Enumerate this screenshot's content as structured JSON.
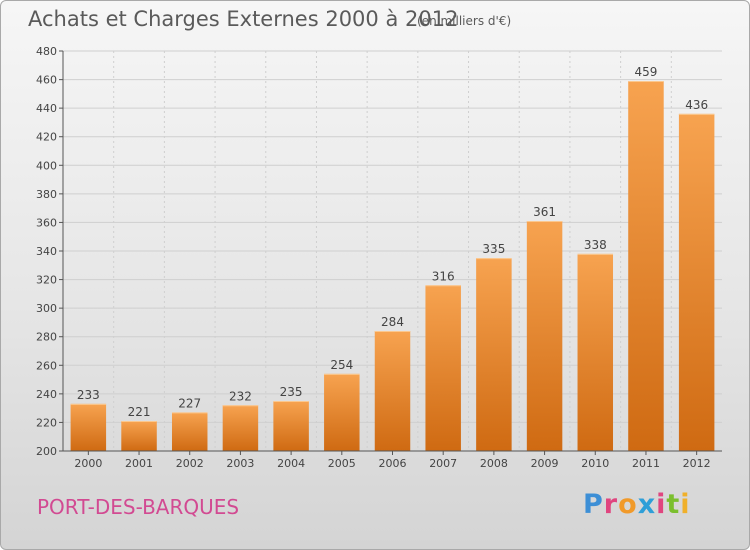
{
  "header": {
    "title": "Achats et Charges Externes 2000 à 2012",
    "subtitle": "(en milliers d'€)"
  },
  "footer": {
    "town": "PORT-DES-BARQUES",
    "logo": "Proxiti"
  },
  "colors": {
    "bar_light": "#f7a350",
    "bar_dark": "#cf6a12",
    "axis": "#555555",
    "grid": "#cfcfcf",
    "town": "#d24a92"
  },
  "chart_data": {
    "type": "bar",
    "title": "Achats et Charges Externes 2000 à 2012",
    "subtitle": "(en milliers d'€)",
    "categories": [
      "2000",
      "2001",
      "2002",
      "2003",
      "2004",
      "2005",
      "2006",
      "2007",
      "2008",
      "2009",
      "2010",
      "2011",
      "2012"
    ],
    "values": [
      233,
      221,
      227,
      232,
      235,
      254,
      284,
      316,
      335,
      361,
      338,
      459,
      436
    ],
    "xlabel": "",
    "ylabel": "",
    "ylim": [
      200,
      480
    ],
    "yticks": [
      200,
      220,
      240,
      260,
      280,
      300,
      320,
      340,
      360,
      380,
      400,
      420,
      440,
      460,
      480
    ],
    "grid": true,
    "legend": "none",
    "data_labels": true
  }
}
